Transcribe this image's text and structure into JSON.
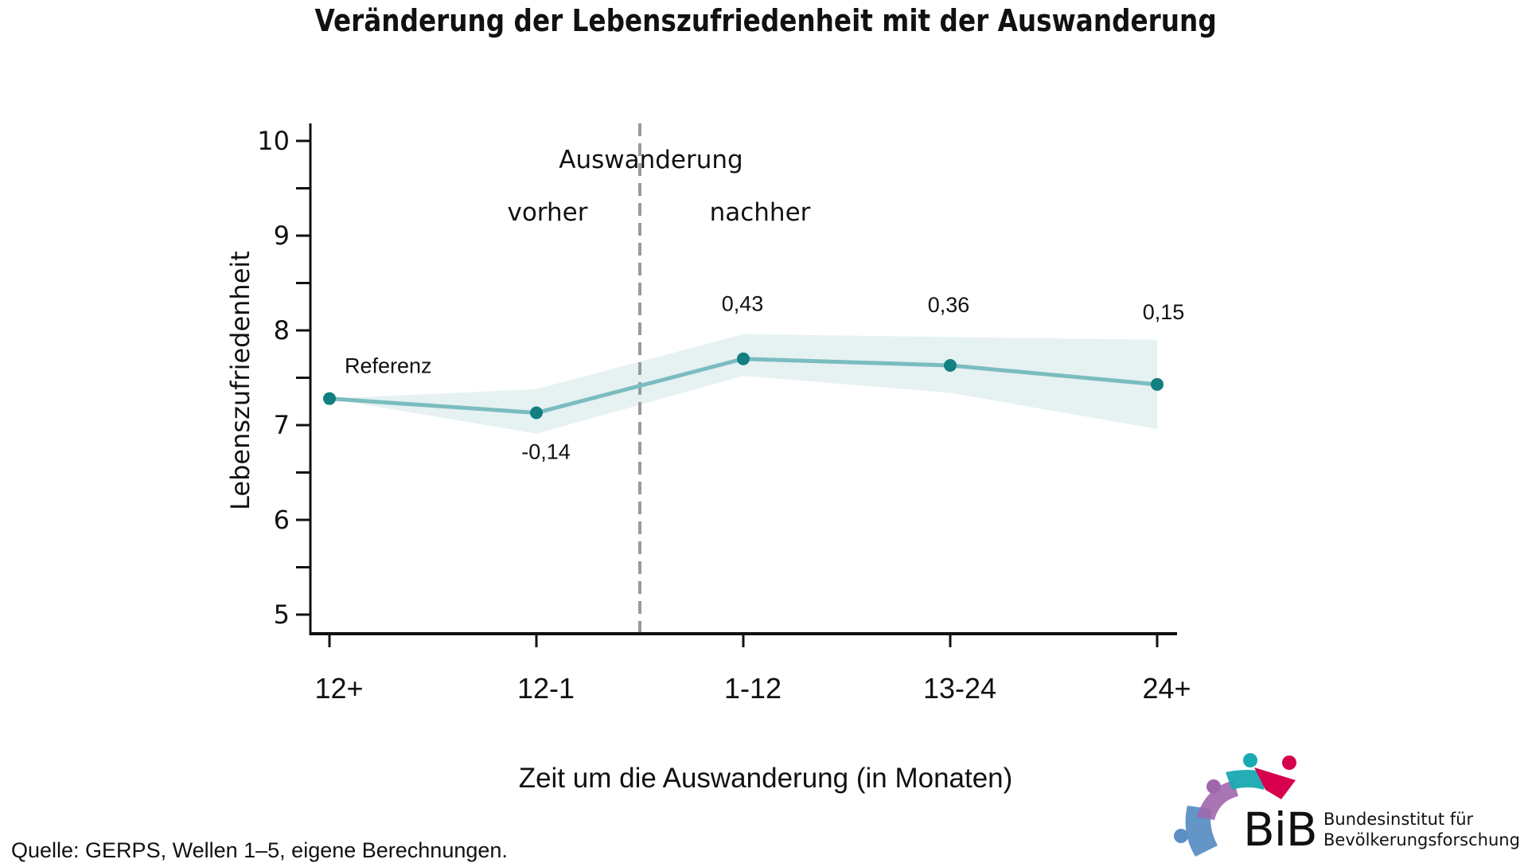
{
  "title": "Veränderung der Lebenszufriedenheit mit der Auswanderung",
  "source": "Quelle: GERPS, Wellen 1–5, eigene Berechnungen.",
  "logo": {
    "abbr": "BiB",
    "name_line1": "Bundesinstitut für",
    "name_line2": "Bevölkerungsforschung",
    "icon": "bib-logo-icon"
  },
  "colors": {
    "line": "#7bbcbf",
    "point": "#127f80",
    "band": "#e6f1f2",
    "divider": "#9a9a9a",
    "axis": "#111111",
    "logo_purple": "#a066ac",
    "logo_teal": "#19a9b2",
    "logo_red": "#d6004f",
    "logo_blue": "#5b8fc4"
  },
  "chart_data": {
    "type": "line",
    "title": "Veränderung der Lebenszufriedenheit mit der Auswanderung",
    "xlabel": "Zeit um die Auswanderung (in Monaten)",
    "ylabel": "Lebenszufriedenheit",
    "categories": [
      "12+",
      "12-1",
      "1-12",
      "13-24",
      "24+"
    ],
    "ylim": [
      5,
      10
    ],
    "yticks": [
      5,
      6,
      7,
      8,
      9,
      10
    ],
    "yticks_minor": [
      5.5,
      6.5,
      7.5,
      8.5,
      9.5
    ],
    "grid": false,
    "series": [
      {
        "name": "Lebenszufriedenheit",
        "values": [
          7.28,
          7.13,
          7.7,
          7.63,
          7.43
        ],
        "ci_lower": [
          7.28,
          6.91,
          7.52,
          7.34,
          6.96
        ],
        "ci_upper": [
          7.28,
          7.38,
          7.96,
          7.93,
          7.9
        ]
      }
    ],
    "data_labels": [
      "Referenz",
      "-0,14",
      "0,43",
      "0,36",
      "0,15"
    ],
    "divider": {
      "position_between": [
        "12-1",
        "1-12"
      ],
      "label": "Auswanderung",
      "left_label": "vorher",
      "right_label": "nachher"
    }
  }
}
